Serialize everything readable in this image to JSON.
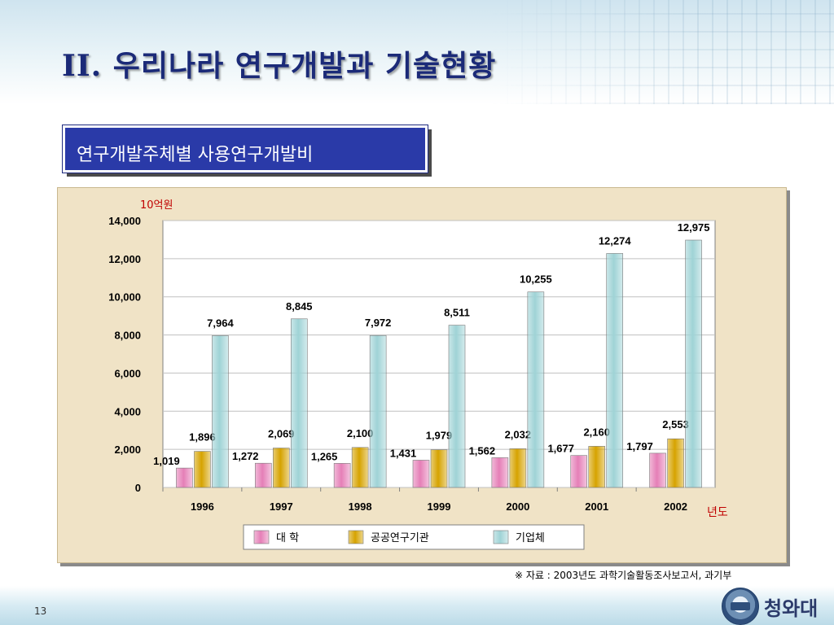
{
  "slide": {
    "title": "II. 우리나라 연구개발과 기술현황",
    "subtitle": "연구개발주체별 사용연구개발비",
    "source": "※ 자료 : 2003년도 과학기술활동조사보고서, 과기부",
    "page_number": "13",
    "logo_text": "청와대"
  },
  "chart_data": {
    "type": "bar",
    "unit_label": "10억원",
    "xlabel": "년도",
    "categories": [
      "1996",
      "1997",
      "1998",
      "1999",
      "2000",
      "2001",
      "2002"
    ],
    "series": [
      {
        "name": "대    학",
        "values": [
          1019,
          1272,
          1265,
          1431,
          1562,
          1677,
          1797
        ],
        "labels": [
          "1,019",
          "1,272",
          "1,265",
          "1,431",
          "1,562",
          "1,677",
          "1,797"
        ],
        "color": "#e57fb7"
      },
      {
        "name": "공공연구기관",
        "values": [
          1896,
          2069,
          2100,
          1979,
          2032,
          2160,
          2553
        ],
        "labels": [
          "1,896",
          "2,069",
          "2,100",
          "1,979",
          "2,032",
          "2,160",
          "2,553"
        ],
        "color": "#d6a300"
      },
      {
        "name": "기업체",
        "values": [
          7964,
          8845,
          7972,
          8511,
          10255,
          12274,
          12975
        ],
        "labels": [
          "7,964",
          "8,845",
          "7,972",
          "8,511",
          "10,255",
          "12,274",
          "12,975"
        ],
        "color": "#9fd3d6"
      }
    ],
    "ylim": [
      0,
      14000
    ],
    "yticks": [
      "0",
      "2,000",
      "4,000",
      "6,000",
      "8,000",
      "10,000",
      "12,000",
      "14,000"
    ],
    "grid": true,
    "legend": "bottom"
  }
}
